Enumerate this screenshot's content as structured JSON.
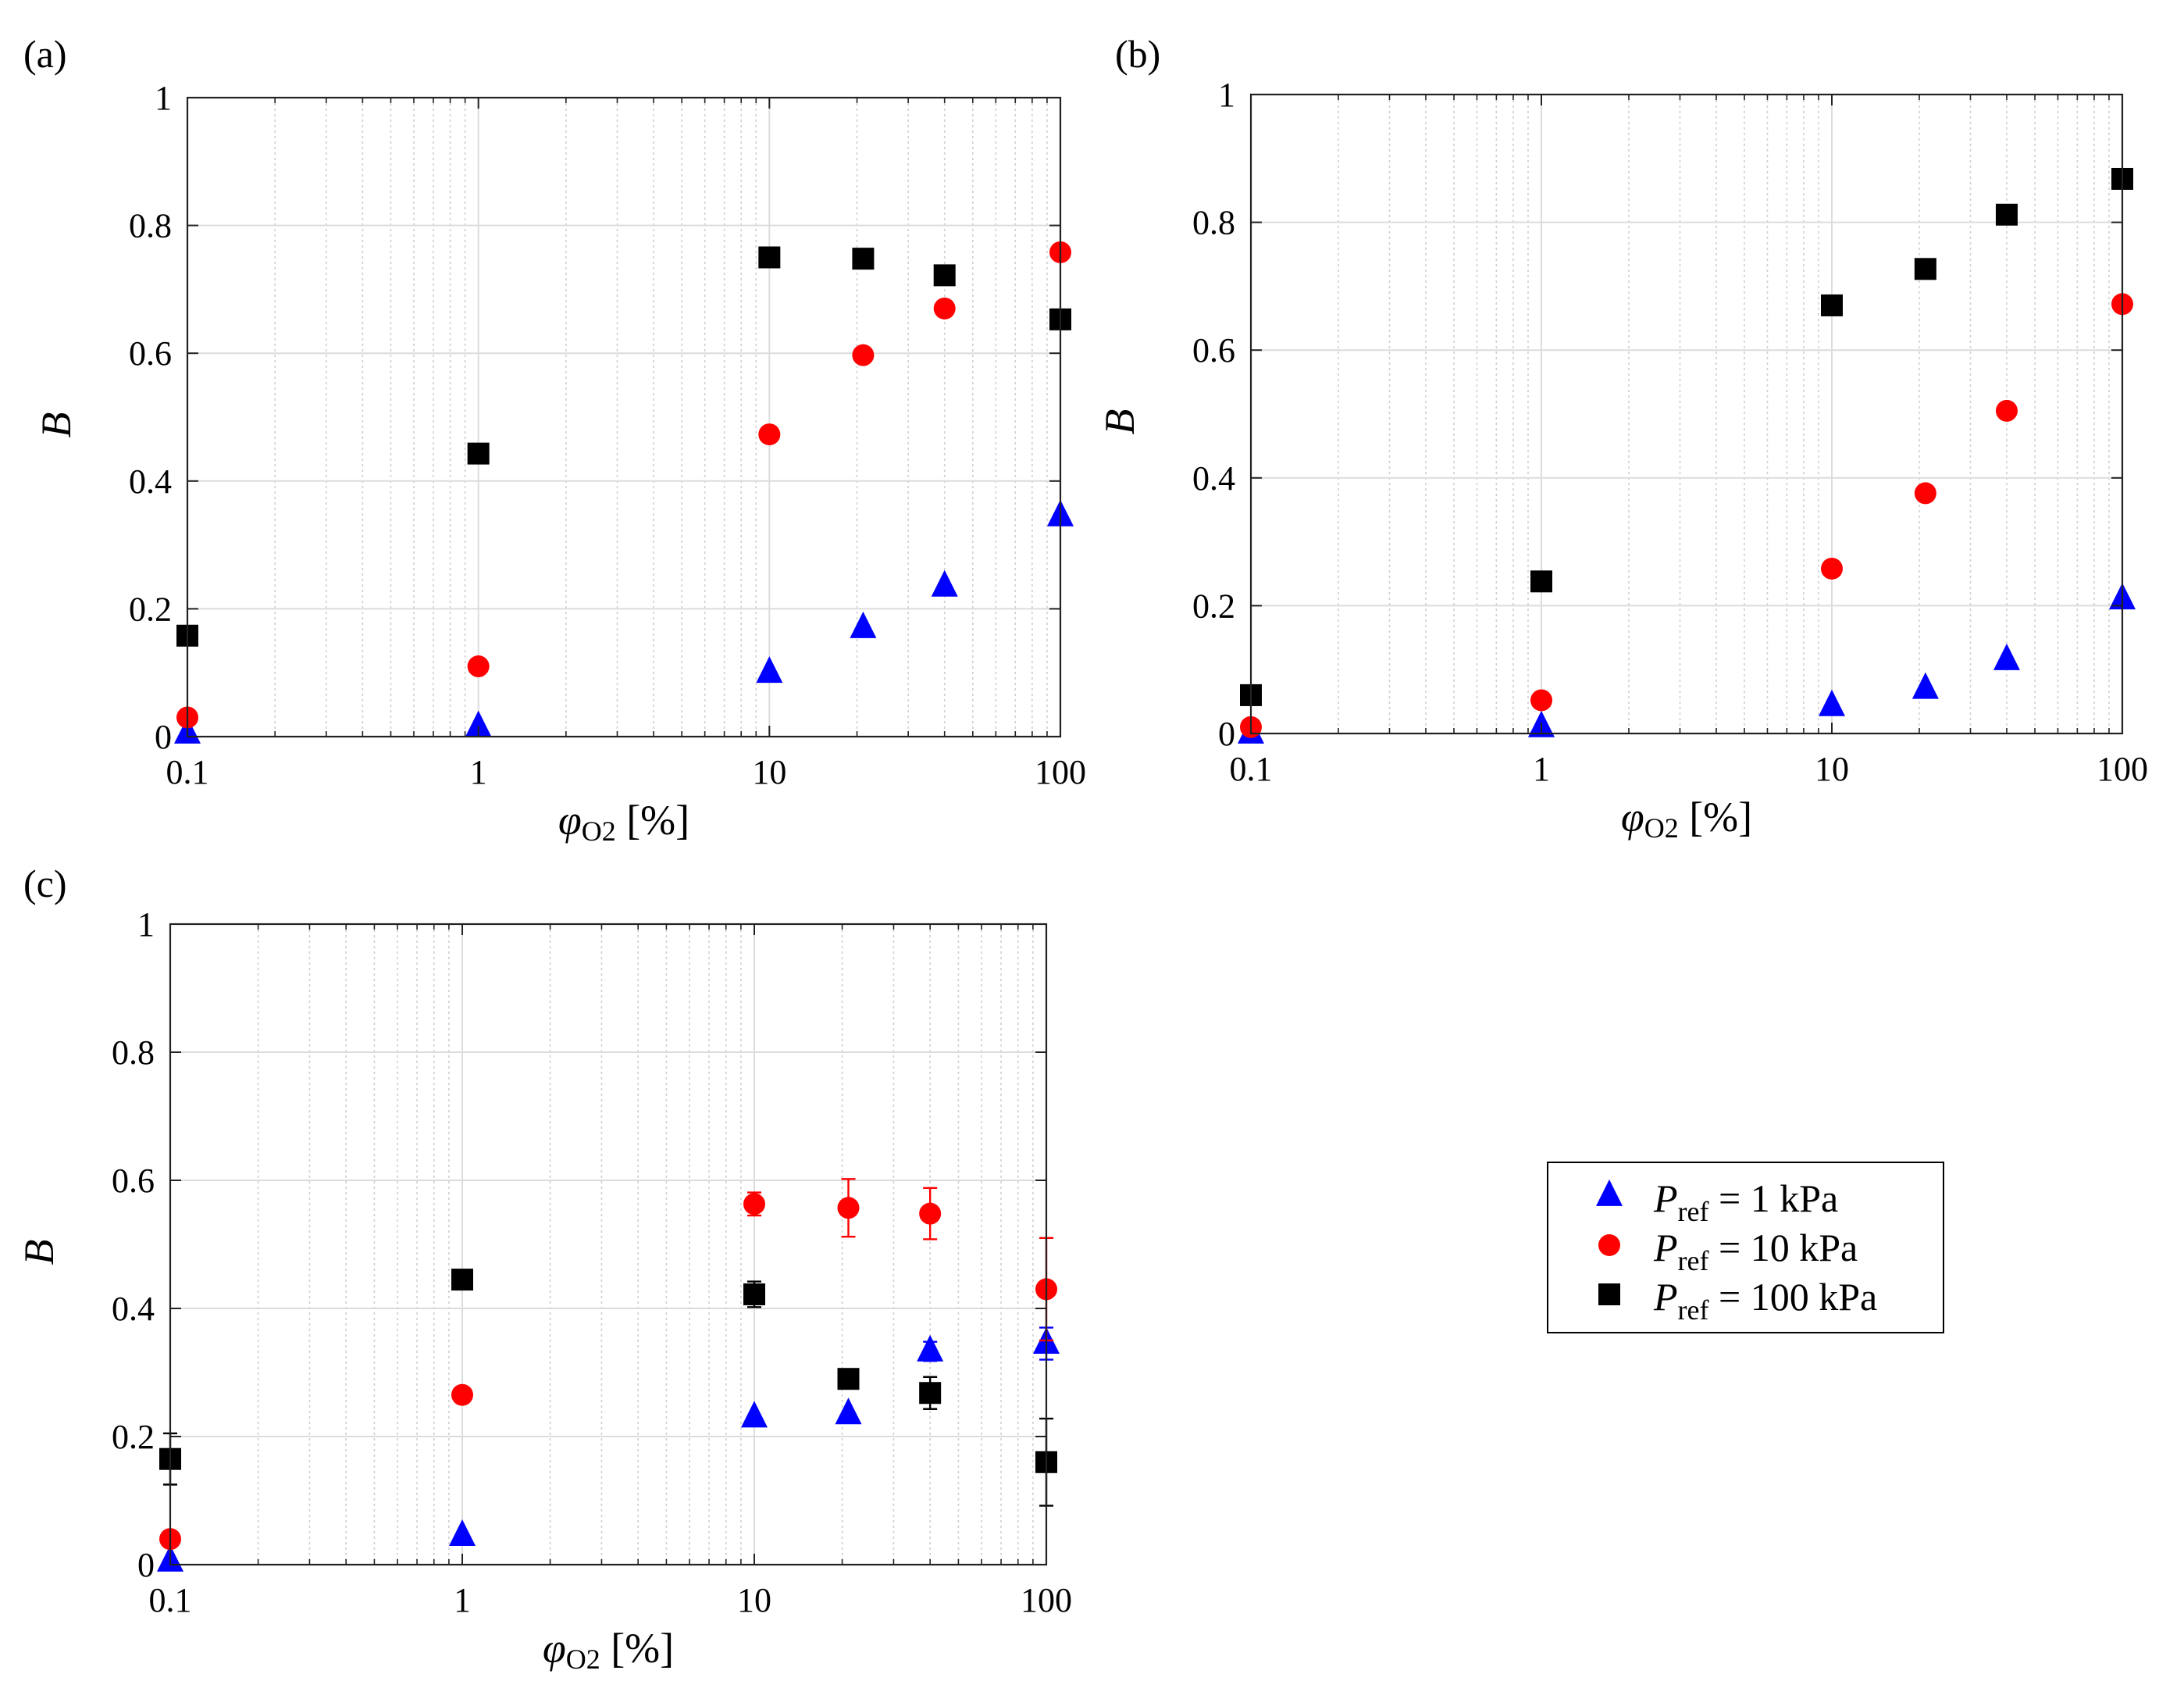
{
  "legend": {
    "entries": [
      {
        "name": "P_ref = 1 kPa",
        "sym": "P",
        "sub": "ref",
        "rest": " = 1 kPa",
        "marker": "triangle",
        "color": "#0000ff"
      },
      {
        "name": "P_ref = 10 kPa",
        "sym": "P",
        "sub": "ref",
        "rest": " = 10 kPa",
        "marker": "circle",
        "color": "#ff0000"
      },
      {
        "name": "P_ref = 100 kPa",
        "sym": "P",
        "sub": "ref",
        "rest": " = 100 kPa",
        "marker": "square",
        "color": "#000000"
      }
    ]
  },
  "chart_data": [
    {
      "panel": "(a)",
      "type": "scatter",
      "xscale": "log",
      "xlim": [
        0.1,
        100
      ],
      "ylim": [
        0,
        1
      ],
      "xticks": [
        "0.1",
        "1",
        "10",
        "100"
      ],
      "yticks": [
        "0",
        "0.2",
        "0.4",
        "0.6",
        "0.8",
        "1"
      ],
      "xlabel": {
        "sym": "φ",
        "sub": "O2",
        "unit": " [%]"
      },
      "ylabel": "B",
      "grid": true,
      "series": [
        {
          "name": "P_ref = 1 kPa",
          "marker": "triangle",
          "color": "#0000ff",
          "x": [
            0.1,
            1,
            10,
            21,
            40,
            100
          ],
          "y": [
            0.005,
            0.015,
            0.1,
            0.17,
            0.235,
            0.345
          ]
        },
        {
          "name": "P_ref = 10 kPa",
          "marker": "circle",
          "color": "#ff0000",
          "x": [
            0.1,
            1,
            10,
            21,
            40,
            100
          ],
          "y": [
            0.03,
            0.11,
            0.473,
            0.597,
            0.67,
            0.758
          ]
        },
        {
          "name": "P_ref = 100 kPa",
          "marker": "square",
          "color": "#000000",
          "x": [
            0.1,
            1,
            10,
            21,
            40,
            100
          ],
          "y": [
            0.158,
            0.443,
            0.75,
            0.748,
            0.722,
            0.653
          ]
        }
      ]
    },
    {
      "panel": "(b)",
      "type": "scatter",
      "xscale": "log",
      "xlim": [
        0.1,
        100
      ],
      "ylim": [
        0,
        1
      ],
      "xticks": [
        "0.1",
        "1",
        "10",
        "100"
      ],
      "yticks": [
        "0",
        "0.2",
        "0.4",
        "0.6",
        "0.8",
        "1"
      ],
      "xlabel": {
        "sym": "φ",
        "sub": "O2",
        "unit": " [%]"
      },
      "ylabel": "B",
      "grid": true,
      "series": [
        {
          "name": "P_ref = 1 kPa",
          "marker": "triangle",
          "color": "#0000ff",
          "x": [
            0.1,
            1,
            10,
            21,
            40,
            100
          ],
          "y": [
            0.0,
            0.01,
            0.043,
            0.07,
            0.115,
            0.21
          ]
        },
        {
          "name": "P_ref = 10 kPa",
          "marker": "circle",
          "color": "#ff0000",
          "x": [
            0.1,
            1,
            10,
            21,
            40,
            100
          ],
          "y": [
            0.01,
            0.052,
            0.258,
            0.376,
            0.505,
            0.672
          ]
        },
        {
          "name": "P_ref = 100 kPa",
          "marker": "square",
          "color": "#000000",
          "x": [
            0.1,
            1,
            10,
            21,
            40,
            100
          ],
          "y": [
            0.06,
            0.238,
            0.67,
            0.727,
            0.812,
            0.868
          ]
        }
      ]
    },
    {
      "panel": "(c)",
      "type": "scatter",
      "xscale": "log",
      "xlim": [
        0.1,
        100
      ],
      "ylim": [
        0,
        1
      ],
      "xticks": [
        "0.1",
        "1",
        "10",
        "100"
      ],
      "yticks": [
        "0",
        "0.2",
        "0.4",
        "0.6",
        "0.8",
        "1"
      ],
      "xlabel": {
        "sym": "φ",
        "sub": "O2",
        "unit": " [%]"
      },
      "ylabel": "B",
      "grid": true,
      "series": [
        {
          "name": "P_ref = 1 kPa",
          "marker": "triangle",
          "color": "#0000ff",
          "x": [
            0.1,
            1,
            10,
            21,
            40,
            100
          ],
          "y": [
            0.005,
            0.045,
            0.23,
            0.235,
            0.333,
            0.345
          ],
          "err": [
            0,
            0,
            0,
            0,
            0.015,
            0.025
          ]
        },
        {
          "name": "P_ref = 10 kPa",
          "marker": "circle",
          "color": "#ff0000",
          "x": [
            0.1,
            1,
            10,
            21,
            40,
            100
          ],
          "y": [
            0.04,
            0.265,
            0.563,
            0.557,
            0.548,
            0.43
          ],
          "err": [
            0,
            0,
            0.018,
            0.045,
            0.04,
            0.08
          ]
        },
        {
          "name": "P_ref = 100 kPa",
          "marker": "square",
          "color": "#000000",
          "x": [
            0.1,
            1,
            10,
            21,
            40,
            100
          ],
          "y": [
            0.165,
            0.445,
            0.422,
            0.29,
            0.268,
            0.16
          ],
          "err": [
            0.04,
            0.01,
            0.02,
            0,
            0.025,
            0.068
          ]
        }
      ]
    }
  ]
}
